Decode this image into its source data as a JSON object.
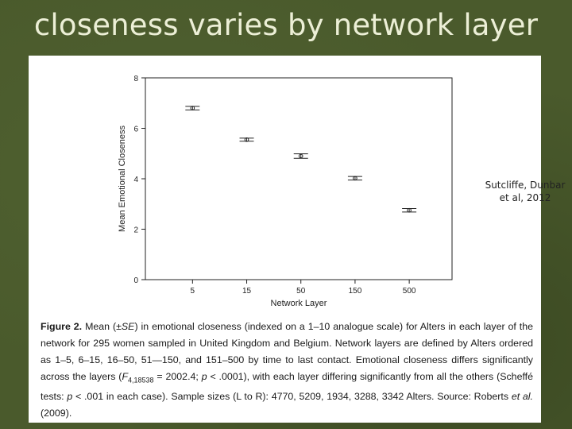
{
  "slide": {
    "title": "closeness varies by network layer",
    "citation_line1": "Sutcliffe, Dunbar",
    "citation_line2": "et al, 2012"
  },
  "colors": {
    "background": "#4a5a2c",
    "title_text": "#ecefd6",
    "panel": "#ffffff"
  },
  "chart_data": {
    "type": "scatter",
    "xlabel": "Network Layer",
    "ylabel": "Mean Emotional Closeness",
    "categories": [
      "5",
      "15",
      "50",
      "150",
      "500"
    ],
    "values": [
      6.8,
      5.55,
      4.9,
      4.02,
      2.75
    ],
    "error_bars": [
      0.07,
      0.06,
      0.09,
      0.07,
      0.07
    ],
    "ylim": [
      0,
      8
    ],
    "yticks": [
      "0",
      "2",
      "4",
      "6",
      "8"
    ],
    "grid": false,
    "legend": "none"
  },
  "caption": {
    "fig_label": "Figure 2.",
    "part1": "Mean (±",
    "se": "SE",
    "part2": ") in emotional closeness (indexed on a 1–10 analogue scale) for Alters in each layer of the network for 295 women sampled in United Kingdom and Belgium. Network layers are defined by Alters ordered as 1–5, 6–15, 16–50, 51—150, and 151–500 by time to last contact. Emotional closeness differs significantly across the layers (",
    "stat_f": "F",
    "stat_df": "4,18538",
    "part3": " = 2002.4; ",
    "stat_p": "p",
    "part4": " < .0001), with each layer differing significantly from all the others (Scheffé tests: ",
    "stat_p2": "p",
    "part5": " < .001 in each case). Sample sizes (L to R): 4770, 5209, 1934, 3288, 3342 Alters. Source: Roberts ",
    "etal": "et al.",
    "part6": " (2009)."
  }
}
